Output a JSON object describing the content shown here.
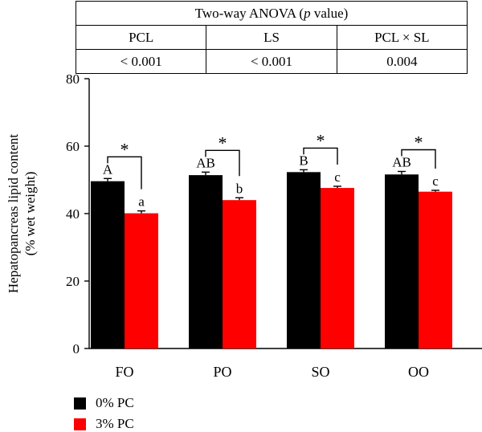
{
  "anova_table": {
    "title": "Two-way ANOVA (p value)",
    "title_prefix": "Two-way ANOVA (",
    "title_italic": "p",
    "title_suffix": " value)",
    "headers": [
      "PCL",
      "LS",
      "PCL × SL"
    ],
    "values": [
      "< 0.001",
      "< 0.001",
      "0.004"
    ]
  },
  "chart_data": {
    "type": "bar",
    "categories": [
      "FO",
      "PO",
      "SO",
      "OO"
    ],
    "series": [
      {
        "name": "0% PC",
        "color": "#000000",
        "values": [
          49.6,
          51.4,
          52.3,
          51.6
        ],
        "errors": [
          0.8,
          0.9,
          0.7,
          0.9
        ],
        "letters": [
          "A",
          "AB",
          "B",
          "AB"
        ]
      },
      {
        "name": "3% PC",
        "color": "#ff0000",
        "values": [
          40.1,
          44.0,
          47.6,
          46.5
        ],
        "errors": [
          0.7,
          0.7,
          0.5,
          0.4
        ],
        "letters": [
          "a",
          "b",
          "c",
          "c"
        ]
      }
    ],
    "significance": [
      "*",
      "*",
      "*",
      "*"
    ],
    "ylabel": "Hepatopancreas lipid content",
    "ylabel_unit": "(% wet weight)",
    "xlabel": "",
    "ylim": [
      0,
      80
    ],
    "yticks": [
      0,
      20,
      40,
      60,
      80
    ],
    "legend_position": "bottom-left",
    "grid": false
  }
}
